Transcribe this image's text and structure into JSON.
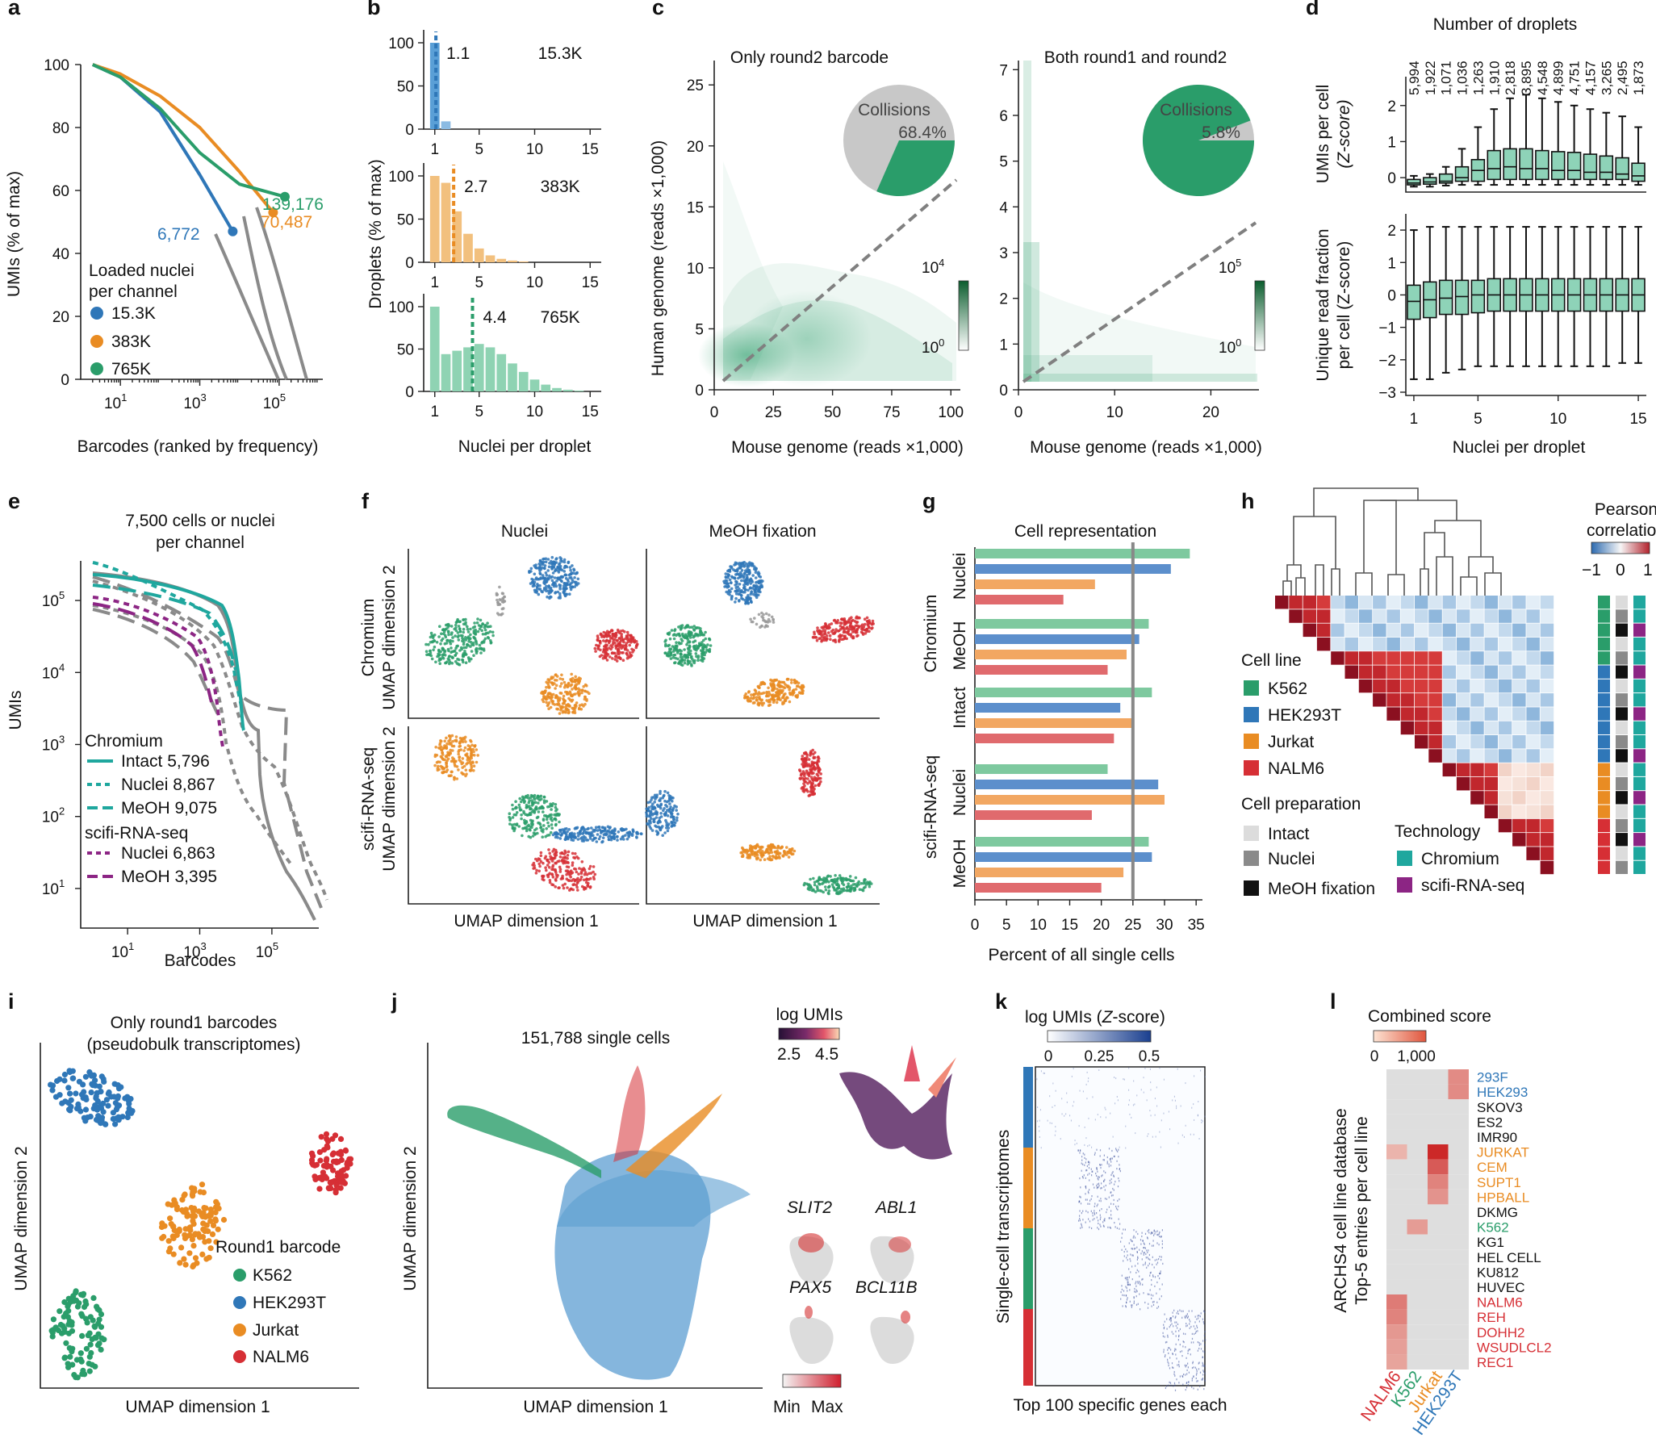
{
  "colors": {
    "K562": "#2a9d6a",
    "HEK293T": "#2f77b8",
    "Jurkat": "#e98c23",
    "NALM6": "#d62f35",
    "teal": "#1fa79e",
    "purple": "#8c2584",
    "grey": "#8a8a8a",
    "box": "#8ed3b8"
  },
  "panels": {
    "a": {
      "label": "a",
      "ylabel": "UMIs (% of max)",
      "xlabel": "Barcodes (ranked by frequency)",
      "legend_title1": "Loaded nuclei",
      "legend_title2": "per channel",
      "legend": [
        "15.3K",
        "383K",
        "765K"
      ],
      "annot": [
        "6,772",
        "70,487",
        "139,176"
      ]
    },
    "b": {
      "label": "b",
      "ylabel": "Droplets (% of max)",
      "xlabel": "Nuclei per droplet"
    },
    "c": {
      "label": "c",
      "title_left": "Only round2 barcode",
      "title_right": "Both round1 and round2",
      "ylabel": "Human genome (reads ×1,000)",
      "xlabel": "Mouse genome (reads ×1,000)",
      "pie_label": "Collisions",
      "pie_left": "68.4%",
      "pie_right": "5.8%"
    },
    "d": {
      "label": "d",
      "title": "Number of droplets",
      "ylabel_top1": "UMIs per cell",
      "ylabel_top2": "(Z-score)",
      "ylabel_bot1": "Unique read fraction",
      "ylabel_bot2": "per cell (Z-score)",
      "xlabel": "Nuclei per droplet"
    },
    "e": {
      "label": "e",
      "title1": "7,500 cells or nuclei",
      "title2": "per channel",
      "ylabel": "UMIs",
      "xlabel": "Barcodes",
      "legend": [
        "Chromium",
        "Intact 5,796",
        "Nuclei 8,867",
        "MeOH 9,075",
        "scifi-RNA-seq",
        "Nuclei 6,863",
        "MeOH 3,395"
      ]
    },
    "f": {
      "label": "f",
      "col1": "Nuclei",
      "col2": "MeOH fixation",
      "row1a": "Chromium",
      "row1b": "UMAP dimension 2",
      "row2a": "scifi-RNA-seq",
      "row2b": "UMAP dimension 2",
      "xlabel": "UMAP dimension 1"
    },
    "g": {
      "label": "g",
      "title": "Cell representation",
      "xlabel": "Percent of all single cells",
      "groups": [
        "Nuclei",
        "MeOH",
        "Intact",
        "Nuclei",
        "MeOH"
      ],
      "tech": [
        "Chromium",
        "scifi-RNA-seq"
      ]
    },
    "h": {
      "label": "h",
      "title1": "Pearson",
      "title2": "correlation",
      "cell_line": "Cell line",
      "cell_lines": [
        "K562",
        "HEK293T",
        "Jurkat",
        "NALM6"
      ],
      "prep": "Cell preparation",
      "preps": [
        "Intact",
        "Nuclei",
        "MeOH fixation"
      ],
      "tech": "Technology",
      "techs": [
        "Chromium",
        "scifi-RNA-seq"
      ]
    },
    "i": {
      "label": "i",
      "title1": "Only round1 barcodes",
      "title2": "(pseudobulk transcriptomes)",
      "ylabel": "UMAP dimension 2",
      "xlabel": "UMAP dimension 1",
      "legend_title": "Round1 barcode",
      "legend": [
        "K562",
        "HEK293T",
        "Jurkat",
        "NALM6"
      ]
    },
    "j": {
      "label": "j",
      "title": "151,788 single cells",
      "ylabel": "UMAP dimension 2",
      "xlabel": "UMAP dimension 1",
      "cbar_title": "log UMIs",
      "genes": [
        "SLIT2",
        "ABL1",
        "PAX5",
        "BCL11B"
      ],
      "min": "Min",
      "max": "Max"
    },
    "k": {
      "label": "k",
      "cbar_title": "log UMIs (Z-score)",
      "ylabel": "Single-cell transcriptomes",
      "xlabel": "Top 100 specific genes each"
    },
    "l": {
      "label": "l",
      "cbar_title": "Combined score",
      "ylabel1": "ARCHS4 cell line database",
      "ylabel2": "Top-5 entries per cell line"
    }
  },
  "chart_data": [
    {
      "panel": "a",
      "type": "line",
      "xscale": "log",
      "xticks": [
        "10^1",
        "10^3",
        "10^5"
      ],
      "yticks": [
        0,
        20,
        40,
        60,
        80,
        100
      ],
      "series": [
        {
          "name": "15.3K",
          "x": [
            2,
            10,
            100,
            1000,
            6772
          ],
          "y": [
            100,
            96,
            85,
            65,
            47
          ]
        },
        {
          "name": "383K",
          "x": [
            2,
            10,
            100,
            1000,
            10000,
            70487
          ],
          "y": [
            100,
            97,
            90,
            80,
            66,
            53
          ]
        },
        {
          "name": "765K",
          "x": [
            2,
            10,
            100,
            1000,
            10000,
            139176
          ],
          "y": [
            100,
            96,
            86,
            72,
            62,
            58
          ]
        }
      ]
    },
    {
      "panel": "b",
      "type": "bar",
      "xticks": [
        1,
        5,
        10,
        15
      ],
      "yticks": [
        0,
        50,
        100
      ],
      "series": [
        {
          "name": "15.3K",
          "mean": "1.1",
          "values": [
            100,
            9
          ]
        },
        {
          "name": "383K",
          "mean": "2.7",
          "values": [
            100,
            92,
            59,
            33,
            16,
            8,
            4,
            2,
            1
          ]
        },
        {
          "name": "765K",
          "mean": "4.4",
          "values": [
            100,
            44,
            48,
            52,
            56,
            52,
            44,
            33,
            23,
            14,
            8,
            4,
            2,
            1
          ]
        }
      ]
    },
    {
      "panel": "c",
      "type": "heatmap",
      "left": {
        "xticks": [
          0,
          25,
          50,
          75,
          100
        ],
        "yticks": [
          0,
          5,
          10,
          15,
          20,
          25
        ],
        "collisions": 68.4,
        "cbar": [
          "10^4",
          "10^0"
        ]
      },
      "right": {
        "xticks": [
          0,
          10,
          20
        ],
        "yticks": [
          0,
          1,
          2,
          3,
          4,
          5,
          6,
          7
        ],
        "collisions": 5.8,
        "cbar": [
          "10^5",
          "10^0"
        ]
      }
    },
    {
      "panel": "d",
      "type": "box",
      "categories": [
        1,
        2,
        3,
        4,
        5,
        6,
        7,
        8,
        9,
        10,
        11,
        12,
        13,
        14,
        15
      ],
      "droplet_counts": [
        "5,994",
        "1,922",
        "1,071",
        "1,036",
        "1,263",
        "1,910",
        "2,818",
        "3,895",
        "4,548",
        "4,899",
        "4,751",
        "4,157",
        "3,265",
        "2,495",
        "1,873"
      ],
      "umis": {
        "yticks": [
          0,
          1,
          2
        ],
        "median": [
          -0.15,
          -0.12,
          -0.1,
          0,
          0.2,
          0.25,
          0.3,
          0.25,
          0.25,
          0.2,
          0.2,
          0.15,
          0.15,
          0.1,
          0.05
        ],
        "q1": [
          -0.2,
          -0.18,
          -0.15,
          -0.1,
          -0.1,
          -0.05,
          -0.05,
          -0.05,
          -0.05,
          -0.05,
          -0.05,
          -0.05,
          -0.05,
          -0.05,
          -0.1
        ],
        "q3": [
          -0.05,
          0,
          0.1,
          0.3,
          0.5,
          0.75,
          0.8,
          0.8,
          0.75,
          0.72,
          0.7,
          0.65,
          0.6,
          0.55,
          0.4
        ],
        "lo": [
          -0.25,
          -0.25,
          -0.22,
          -0.2,
          -0.2,
          -0.2,
          -0.2,
          -0.2,
          -0.2,
          -0.2,
          -0.2,
          -0.2,
          -0.2,
          -0.2,
          -0.2
        ],
        "hi": [
          0.05,
          0.1,
          0.3,
          0.8,
          1.4,
          1.9,
          2.2,
          2.3,
          2.2,
          2.1,
          2.0,
          1.9,
          1.8,
          1.7,
          1.4
        ]
      },
      "unique": {
        "yticks": [
          -3,
          -2,
          -1,
          0,
          1,
          2
        ],
        "median": [
          -0.2,
          -0.15,
          -0.1,
          -0.05,
          0,
          0,
          0,
          0,
          0,
          0,
          0,
          0,
          0,
          0,
          0
        ],
        "q1": [
          -0.75,
          -0.7,
          -0.6,
          -0.6,
          -0.55,
          -0.5,
          -0.5,
          -0.5,
          -0.5,
          -0.5,
          -0.5,
          -0.5,
          -0.5,
          -0.5,
          -0.5
        ],
        "q3": [
          0.3,
          0.4,
          0.45,
          0.45,
          0.45,
          0.5,
          0.5,
          0.5,
          0.5,
          0.5,
          0.5,
          0.5,
          0.5,
          0.5,
          0.5
        ],
        "lo": [
          -2.6,
          -2.6,
          -2.4,
          -2.3,
          -2.2,
          -2.2,
          -2.2,
          -2.2,
          -2.2,
          -2.2,
          -2.2,
          -2.2,
          -2.2,
          -2.1,
          -2.1
        ],
        "hi": [
          2.0,
          2.1,
          2.1,
          2.1,
          2.1,
          2.1,
          2.1,
          2.1,
          2.1,
          2.1,
          2.1,
          2.1,
          2.1,
          2.1,
          2.1
        ]
      }
    },
    {
      "panel": "e",
      "type": "line",
      "xscale": "log",
      "yscale": "log",
      "xticks": [
        "10^1",
        "10^3",
        "10^5"
      ],
      "yticks": [
        "10^1",
        "10^2",
        "10^3",
        "10^4",
        "10^5"
      ]
    },
    {
      "panel": "g",
      "type": "bar",
      "orientation": "horizontal",
      "xticks": [
        0,
        5,
        10,
        15,
        20,
        25,
        30,
        35
      ],
      "reference": 25,
      "groups": [
        {
          "name": "Chromium Nuclei",
          "values": [
            34,
            31,
            19,
            14
          ]
        },
        {
          "name": "Chromium MeOH",
          "values": [
            27.5,
            26,
            24,
            21
          ]
        },
        {
          "name": "Chromium Intact",
          "values": [
            28,
            23,
            25,
            22
          ]
        },
        {
          "name": "scifi-RNA-seq Nuclei",
          "values": [
            21,
            29,
            30,
            18.5
          ]
        },
        {
          "name": "scifi-RNA-seq MeOH",
          "values": [
            27.5,
            28,
            23.5,
            20
          ]
        }
      ]
    },
    {
      "panel": "h",
      "type": "heatmap",
      "cbar_ticks": [
        "-1",
        "0",
        "1"
      ]
    },
    {
      "panel": "k",
      "type": "heatmap",
      "cbar_ticks": [
        "0",
        "0.25",
        "0.5"
      ]
    },
    {
      "panel": "l",
      "type": "heatmap",
      "cbar_ticks": [
        "0",
        "1,000"
      ],
      "columns": [
        "NALM6",
        "K562",
        "Jurkat",
        "HEK293T"
      ],
      "rows": [
        {
          "name": "293F",
          "group": "HEK293T",
          "v": [
            0,
            0,
            0,
            400
          ]
        },
        {
          "name": "HEK293",
          "group": "HEK293T",
          "v": [
            0,
            0,
            0,
            400
          ]
        },
        {
          "name": "SKOV3",
          "group": "other",
          "v": [
            0,
            0,
            0,
            0
          ]
        },
        {
          "name": "ES2",
          "group": "other",
          "v": [
            0,
            0,
            0,
            0
          ]
        },
        {
          "name": "IMR90",
          "group": "other",
          "v": [
            0,
            0,
            0,
            0
          ]
        },
        {
          "name": "JURKAT",
          "group": "Jurkat",
          "v": [
            150,
            0,
            1000,
            0
          ]
        },
        {
          "name": "CEM",
          "group": "Jurkat",
          "v": [
            0,
            0,
            700,
            0
          ]
        },
        {
          "name": "SUPT1",
          "group": "Jurkat",
          "v": [
            0,
            0,
            450,
            0
          ]
        },
        {
          "name": "HPBALL",
          "group": "Jurkat",
          "v": [
            0,
            0,
            350,
            0
          ]
        },
        {
          "name": "DKMG",
          "group": "other",
          "v": [
            0,
            0,
            0,
            0
          ]
        },
        {
          "name": "K562",
          "group": "K562",
          "v": [
            0,
            300,
            0,
            0
          ]
        },
        {
          "name": "KG1",
          "group": "other",
          "v": [
            0,
            0,
            0,
            0
          ]
        },
        {
          "name": "HEL CELL",
          "group": "other",
          "v": [
            0,
            0,
            0,
            0
          ]
        },
        {
          "name": "KU812",
          "group": "other",
          "v": [
            0,
            0,
            0,
            0
          ]
        },
        {
          "name": "HUVEC",
          "group": "other",
          "v": [
            0,
            0,
            0,
            0
          ]
        },
        {
          "name": "NALM6",
          "group": "NALM6",
          "v": [
            500,
            0,
            0,
            0
          ]
        },
        {
          "name": "REH",
          "group": "NALM6",
          "v": [
            450,
            0,
            0,
            0
          ]
        },
        {
          "name": "DOHH2",
          "group": "NALM6",
          "v": [
            320,
            0,
            0,
            0
          ]
        },
        {
          "name": "WSUDLCL2",
          "group": "NALM6",
          "v": [
            280,
            0,
            0,
            0
          ]
        },
        {
          "name": "REC1",
          "group": "NALM6",
          "v": [
            250,
            0,
            0,
            0
          ]
        }
      ]
    }
  ]
}
